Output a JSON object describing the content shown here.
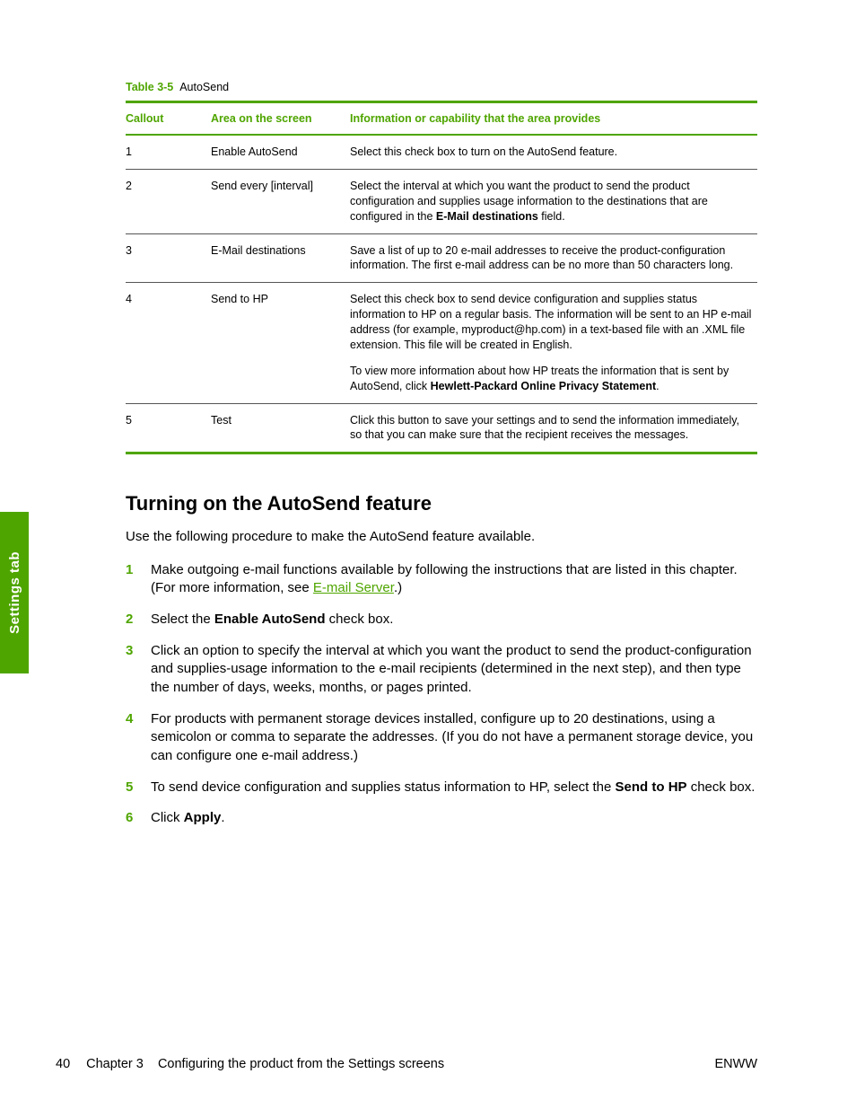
{
  "colors": {
    "accent": "#4fa500"
  },
  "table": {
    "caption_num": "Table 3-5",
    "caption_title": "AutoSend",
    "columns": [
      "Callout",
      "Area on the screen",
      "Information or capability that the area provides"
    ],
    "rows": [
      {
        "callout": "1",
        "area": "Enable AutoSend",
        "info_html": "Select this check box to turn on the AutoSend feature."
      },
      {
        "callout": "2",
        "area": "Send every [interval]",
        "info_html": "Select the interval at which you want the product to send the product configuration and supplies usage information to the destinations that are configured in the <b>E-Mail destinations</b> field."
      },
      {
        "callout": "3",
        "area": "E-Mail destinations",
        "info_html": "Save a list of up to 20 e-mail addresses to receive the product-configuration information. The first e-mail address can be no more than 50 characters long."
      },
      {
        "callout": "4",
        "area": "Send to HP",
        "info_html": "<p class=\"info-p\">Select this check box to send device configuration and supplies status information to HP on a regular basis. The information will be sent to an HP e-mail address (for example, myproduct@hp.com) in a text-based file with an .XML file extension. This file will be created in English.</p><p class=\"info-p\" style=\"margin-bottom:0\">To view more information about how HP treats the information that is sent by AutoSend, click <b>Hewlett-Packard Online Privacy Statement</b>.</p>"
      },
      {
        "callout": "5",
        "area": "Test",
        "info_html": "Click this button to save your settings and to send the information immediately, so that you can make sure that the recipient receives the messages."
      }
    ]
  },
  "heading": "Turning on the AutoSend feature",
  "lead": "Use the following procedure to make the AutoSend feature available.",
  "steps": [
    {
      "n": "1",
      "html": "Make outgoing e-mail functions available by following the instructions that are listed in this chapter. (For more information, see <a class=\"link\" href=\"#\">E-mail Server</a>.)"
    },
    {
      "n": "2",
      "html": "Select the <b>Enable AutoSend</b> check box."
    },
    {
      "n": "3",
      "html": "Click an option to specify the interval at which you want the product to send the product-configuration and supplies-usage information to the e-mail recipients (determined in the next step), and then type the number of days, weeks, months, or pages printed."
    },
    {
      "n": "4",
      "html": "For products with permanent storage devices installed, configure up to 20 destinations, using a semicolon or comma to separate the addresses. (If you do not have a permanent storage device, you can configure one e-mail address.)"
    },
    {
      "n": "5",
      "html": "To send device configuration and supplies status information to HP, select the <b>Send to HP</b> check box."
    },
    {
      "n": "6",
      "html": "Click <b>Apply</b>."
    }
  ],
  "side_tab": "Settings tab",
  "footer": {
    "page_num": "40",
    "chapter": "Chapter 3",
    "chapter_title": "Configuring the product from the Settings screens",
    "right": "ENWW"
  }
}
